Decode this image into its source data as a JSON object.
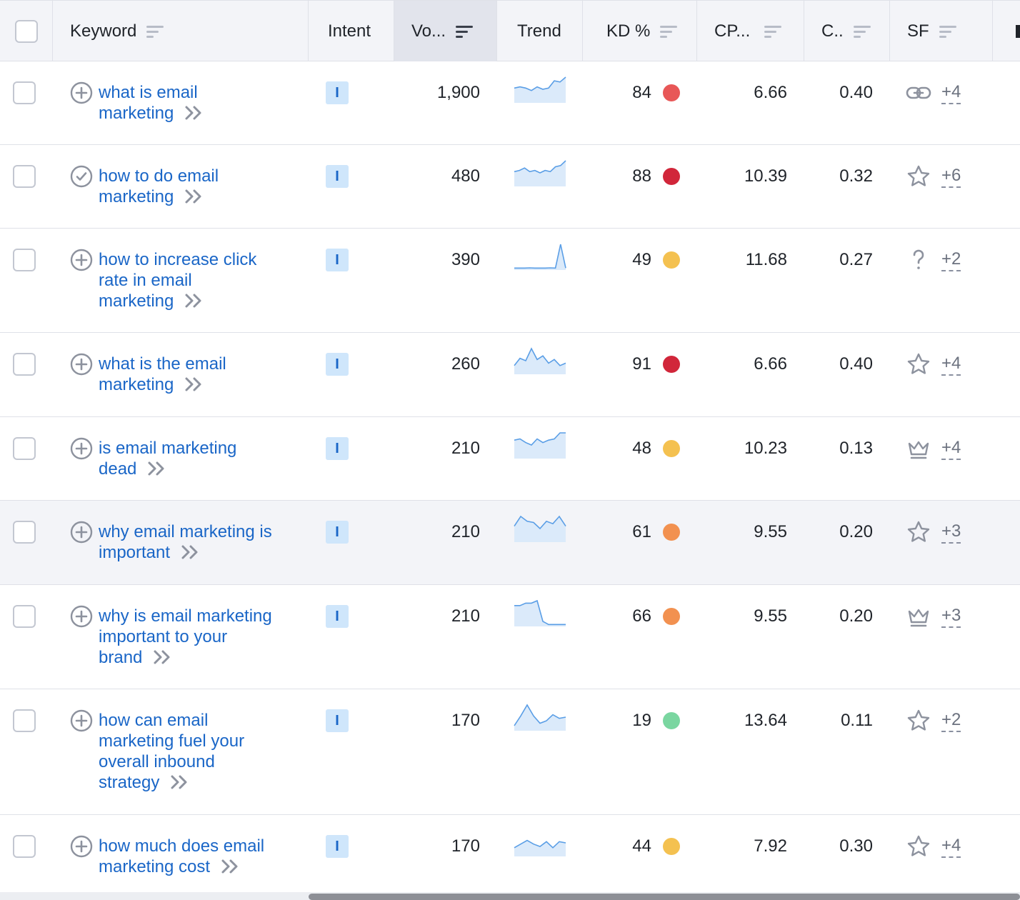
{
  "header": {
    "keyword": "Keyword",
    "intent": "Intent",
    "volume": "Vo...",
    "trend": "Trend",
    "kd": "KD %",
    "cpc": "CP...",
    "competition": "C..",
    "sf": "SF"
  },
  "colors": {
    "link": "#1a66c7",
    "intent_bg": "#cfe6fb",
    "kd_red": "#e85757",
    "kd_darkred": "#d1263a",
    "kd_yellow": "#f4c150",
    "kd_orange": "#f29150",
    "kd_green": "#7ad6a0",
    "trend_line": "#5a9ee6",
    "trend_fill": "#dbeafa"
  },
  "rows": [
    {
      "keyword": "what is email marketing",
      "kw_icon": "plus-circle-icon",
      "intent": "I",
      "volume": "1,900",
      "trend": [
        0.55,
        0.6,
        0.55,
        0.45,
        0.6,
        0.5,
        0.55,
        0.85,
        0.8,
        1.0
      ],
      "kd": "84",
      "kd_color": "#e85757",
      "cpc": "6.66",
      "competition": "0.40",
      "sf_icon": "link-icon",
      "sf_more": "+4"
    },
    {
      "keyword": "how to do email marketing",
      "kw_icon": "check-circle-icon",
      "intent": "I",
      "volume": "480",
      "trend": [
        0.55,
        0.6,
        0.7,
        0.55,
        0.6,
        0.5,
        0.6,
        0.55,
        0.75,
        0.8,
        1.0
      ],
      "kd": "88",
      "kd_color": "#d1263a",
      "cpc": "10.39",
      "competition": "0.32",
      "sf_icon": "star-icon",
      "sf_more": "+6"
    },
    {
      "keyword": "how to increase click rate in email marketing",
      "kw_icon": "plus-circle-icon",
      "intent": "I",
      "volume": "390",
      "trend": [
        0.02,
        0.02,
        0.02,
        0.03,
        0.02,
        0.02,
        0.02,
        0.03,
        0.02,
        1.0,
        0.02
      ],
      "kd": "49",
      "kd_color": "#f4c150",
      "cpc": "11.68",
      "competition": "0.27",
      "sf_icon": "question-icon",
      "sf_more": "+2"
    },
    {
      "keyword": "what is the email marketing",
      "kw_icon": "plus-circle-icon",
      "intent": "I",
      "volume": "260",
      "trend": [
        0.3,
        0.6,
        0.5,
        1.0,
        0.55,
        0.7,
        0.4,
        0.55,
        0.3,
        0.4
      ],
      "kd": "91",
      "kd_color": "#d1263a",
      "cpc": "6.66",
      "competition": "0.40",
      "sf_icon": "star-icon",
      "sf_more": "+4"
    },
    {
      "keyword": "is email marketing dead",
      "kw_icon": "plus-circle-icon",
      "intent": "I",
      "volume": "210",
      "trend": [
        0.7,
        0.75,
        0.6,
        0.5,
        0.75,
        0.6,
        0.7,
        0.75,
        1.0,
        1.0
      ],
      "kd": "48",
      "kd_color": "#f4c150",
      "cpc": "10.23",
      "competition": "0.13",
      "sf_icon": "crown-icon",
      "sf_more": "+4"
    },
    {
      "keyword": "why email marketing is important",
      "kw_icon": "plus-circle-icon",
      "intent": "I",
      "volume": "210",
      "trend": [
        0.6,
        1.0,
        0.8,
        0.75,
        0.5,
        0.8,
        0.7,
        1.0,
        0.6
      ],
      "kd": "61",
      "kd_color": "#f29150",
      "cpc": "9.55",
      "competition": "0.20",
      "sf_icon": "star-icon",
      "sf_more": "+3"
    },
    {
      "keyword": "why is email marketing important to your brand",
      "kw_icon": "plus-circle-icon",
      "intent": "I",
      "volume": "210",
      "trend": [
        0.8,
        0.8,
        0.9,
        0.9,
        1.0,
        0.15,
        0.02,
        0.02,
        0.02,
        0.02
      ],
      "kd": "66",
      "kd_color": "#f29150",
      "cpc": "9.55",
      "competition": "0.20",
      "sf_icon": "crown-icon",
      "sf_more": "+3"
    },
    {
      "keyword": "how can email marketing fuel your overall inbound strategy",
      "kw_icon": "plus-circle-icon",
      "intent": "I",
      "volume": "170",
      "trend": [
        0.15,
        0.55,
        1.0,
        0.55,
        0.25,
        0.35,
        0.6,
        0.45,
        0.5
      ],
      "kd": "19",
      "kd_color": "#7ad6a0",
      "cpc": "13.64",
      "competition": "0.11",
      "sf_icon": "star-icon",
      "sf_more": "+2"
    },
    {
      "keyword": "how much does email marketing cost",
      "kw_icon": "plus-circle-icon",
      "intent": "I",
      "volume": "170",
      "trend": [
        0.3,
        0.45,
        0.6,
        0.45,
        0.35,
        0.55,
        0.3,
        0.55,
        0.5
      ],
      "kd": "44",
      "kd_color": "#f4c150",
      "cpc": "7.92",
      "competition": "0.30",
      "sf_icon": "star-icon",
      "sf_more": "+4"
    }
  ]
}
